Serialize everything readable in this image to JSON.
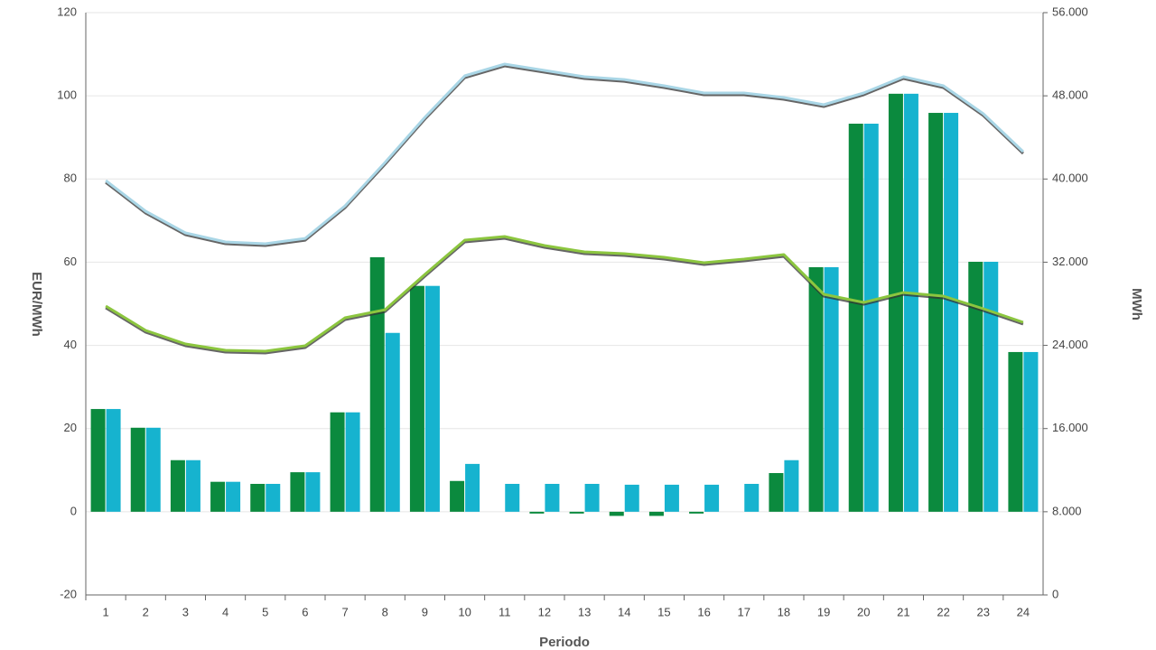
{
  "chart_data": {
    "type": "bar-line",
    "categories": [
      "1",
      "2",
      "3",
      "4",
      "5",
      "6",
      "7",
      "8",
      "9",
      "10",
      "11",
      "12",
      "13",
      "14",
      "15",
      "16",
      "17",
      "18",
      "19",
      "20",
      "21",
      "22",
      "23",
      "24"
    ],
    "series": [
      {
        "type": "bar",
        "color": "#0b8a3e",
        "values": [
          24.7,
          20.2,
          12.4,
          7.2,
          6.7,
          9.5,
          23.9,
          61.2,
          54.3,
          7.4,
          0,
          -0.4,
          -0.4,
          -1,
          -1,
          -0.4,
          0,
          9.3,
          58.8,
          93.3,
          100.5,
          95.9,
          60.1,
          38.4
        ]
      },
      {
        "type": "bar",
        "color": "#16b3cf",
        "values": [
          24.7,
          20.2,
          12.4,
          7.2,
          6.7,
          9.5,
          23.9,
          43.0,
          54.3,
          11.5,
          6.7,
          6.7,
          6.7,
          6.5,
          6.5,
          6.5,
          6.7,
          12.4,
          58.8,
          93.3,
          100.5,
          95.9,
          60.1,
          38.4
        ]
      },
      {
        "type": "line",
        "axis": "y2",
        "color": "#a9d6e6",
        "values": [
          39850,
          36900,
          34815,
          33950,
          33770,
          34290,
          37420,
          41590,
          45930,
          49920,
          51050,
          50440,
          49840,
          49570,
          48970,
          48270,
          48270,
          47840,
          47140,
          48270,
          49840,
          48970,
          46280,
          42630
        ]
      },
      {
        "type": "line",
        "axis": "y2",
        "color": "#8cc63f",
        "values": [
          27780,
          25440,
          24140,
          23530,
          23440,
          23960,
          26650,
          27430,
          30820,
          34120,
          34470,
          33600,
          32990,
          32820,
          32470,
          31950,
          32300,
          32730,
          28910,
          28130,
          29080,
          28740,
          27520,
          26220
        ]
      }
    ],
    "ylabel": "EUR/MWh",
    "y2label": "MWh",
    "xlabel": "Periodo",
    "ylim": [
      -20,
      120
    ],
    "yticks": [
      -20,
      0,
      20,
      40,
      60,
      80,
      100,
      120
    ],
    "y2lim": [
      0,
      56000
    ],
    "y2ticks": [
      0,
      {
        "value": 8000,
        "label": "8.000"
      },
      {
        "value": 16000,
        "label": "16.000"
      },
      {
        "value": 24000,
        "label": "24.000"
      },
      {
        "value": 32000,
        "label": "32.000"
      },
      {
        "value": 40000,
        "label": "40.000"
      },
      {
        "value": 48000,
        "label": "48.000"
      },
      {
        "value": 56000,
        "label": "56.000"
      }
    ],
    "grid": true
  }
}
